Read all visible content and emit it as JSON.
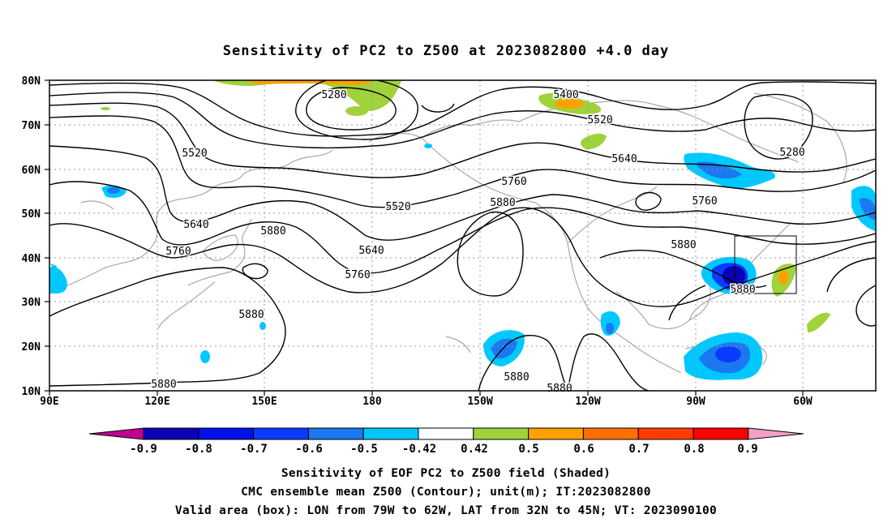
{
  "title": "Sensitivity of PC2 to Z500 at 2023082800 +4.0 day",
  "map": {
    "lat_ticks": [
      "80N",
      "70N",
      "60N",
      "50N",
      "40N",
      "30N",
      "20N",
      "10N"
    ],
    "lon_ticks": [
      "90E",
      "120E",
      "150E",
      "180",
      "150W",
      "120W",
      "90W",
      "60W"
    ],
    "gridlines": "dotted",
    "contour_labels": [
      {
        "text": "5280",
        "place": "north-pacific-low"
      },
      {
        "text": "5400",
        "place": "arctic-canada"
      },
      {
        "text": "5520",
        "place": "arctic-canada"
      },
      {
        "text": "5280",
        "place": "labrador-sea"
      },
      {
        "text": "5520",
        "place": "siberia"
      },
      {
        "text": "5640",
        "place": "north-america"
      },
      {
        "text": "5760",
        "place": "north-pacific"
      },
      {
        "text": "5880",
        "place": "north-pacific"
      },
      {
        "text": "5520",
        "place": "north-pacific"
      },
      {
        "text": "5760",
        "place": "north-america"
      },
      {
        "text": "5640",
        "place": "japan"
      },
      {
        "text": "5760",
        "place": "japan"
      },
      {
        "text": "5880",
        "place": "japan"
      },
      {
        "text": "5640",
        "place": "central-pacific"
      },
      {
        "text": "5760",
        "place": "central-pacific"
      },
      {
        "text": "5880",
        "place": "great-plains"
      },
      {
        "text": "5880",
        "place": "east-coast"
      },
      {
        "text": "5880",
        "place": "western-pacific"
      },
      {
        "text": "5880",
        "place": "south-china-sea"
      },
      {
        "text": "5880",
        "place": "hawaii"
      },
      {
        "text": "5880",
        "place": "mexico"
      }
    ],
    "valid_box": {
      "lon_from": -79,
      "lon_to": -62,
      "lat_from": 32,
      "lat_to": 45
    }
  },
  "colorbar": {
    "ticks": [
      "-0.9",
      "-0.8",
      "-0.7",
      "-0.6",
      "-0.5",
      "-0.42",
      "0.42",
      "0.5",
      "0.6",
      "0.7",
      "0.8",
      "0.9"
    ],
    "colors": [
      "#c0008f",
      "#0b00b4",
      "#0010e8",
      "#0a3cff",
      "#1a78f0",
      "#00c8ff",
      "#ffffff",
      "#a0d23c",
      "#ffa000",
      "#ff6e00",
      "#ff3c00",
      "#ff0000",
      "#f2a0c8"
    ]
  },
  "captions": [
    "Sensitivity of EOF PC2 to Z500 field (Shaded)",
    "CMC ensemble mean Z500 (Contour); unit(m); IT:2023082800",
    "Valid area (box): LON from 79W to 62W, LAT from 32N to 45N; VT: 2023090100"
  ]
}
